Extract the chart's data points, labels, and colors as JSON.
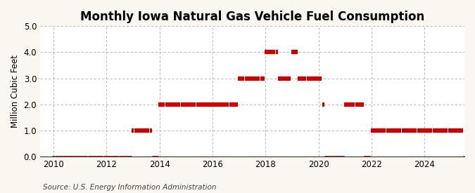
{
  "title": "Monthly Iowa Natural Gas Vehicle Fuel Consumption",
  "ylabel": "Million Cubic Feet",
  "source": "Source: U.S. Energy Information Administration",
  "bg_color": "#faf7f0",
  "plot_bg": "#ffffff",
  "marker_color": "#cc0000",
  "grid_color": "#999999",
  "xlim": [
    2009.5,
    2025.5
  ],
  "ylim": [
    0.0,
    5.0
  ],
  "yticks": [
    0.0,
    1.0,
    2.0,
    3.0,
    4.0,
    5.0
  ],
  "xticks": [
    2010,
    2012,
    2014,
    2016,
    2018,
    2020,
    2022,
    2024
  ],
  "title_fontsize": 12,
  "label_fontsize": 8.5,
  "tick_fontsize": 8.5,
  "source_fontsize": 7.5,
  "monthly_values": {
    "2010": [
      0,
      0,
      0,
      0,
      0,
      0,
      0,
      0,
      0,
      0,
      0,
      0
    ],
    "2011": [
      0,
      0,
      0,
      0,
      0,
      0,
      0,
      0,
      0,
      0,
      0,
      0
    ],
    "2012": [
      0,
      0,
      0,
      0,
      0,
      0,
      0,
      0,
      0,
      0,
      0,
      0
    ],
    "2013": [
      1,
      1,
      1,
      1,
      1,
      1,
      1,
      1,
      1,
      0,
      0,
      0
    ],
    "2014": [
      2,
      2,
      2,
      2,
      2,
      2,
      2,
      2,
      2,
      2,
      2,
      2
    ],
    "2015": [
      2,
      2,
      2,
      2,
      2,
      2,
      2,
      2,
      2,
      2,
      2,
      2
    ],
    "2016": [
      2,
      2,
      2,
      2,
      2,
      2,
      2,
      2,
      2,
      2,
      2,
      2
    ],
    "2017": [
      3,
      3,
      3,
      3,
      3,
      3,
      3,
      3,
      3,
      3,
      3,
      3
    ],
    "2018": [
      4,
      4,
      4,
      4,
      4,
      4,
      3,
      3,
      3,
      3,
      3,
      3
    ],
    "2019": [
      4,
      4,
      4,
      3,
      3,
      3,
      3,
      3,
      3,
      3,
      3,
      3
    ],
    "2020": [
      3,
      3,
      2,
      0,
      0,
      0,
      0,
      0,
      0,
      0,
      0,
      0
    ],
    "2021": [
      2,
      2,
      2,
      2,
      2,
      2,
      2,
      2,
      2,
      0,
      0,
      0
    ],
    "2022": [
      1,
      1,
      1,
      1,
      1,
      1,
      1,
      1,
      1,
      1,
      1,
      1
    ],
    "2023": [
      1,
      1,
      1,
      1,
      1,
      1,
      1,
      1,
      1,
      1,
      1,
      1
    ],
    "2024": [
      1,
      1,
      1,
      1,
      1,
      1,
      1,
      1,
      1,
      1,
      1,
      1
    ],
    "2025": [
      1,
      1,
      1,
      1,
      1,
      1,
      0,
      0,
      0,
      0,
      0,
      0
    ]
  }
}
